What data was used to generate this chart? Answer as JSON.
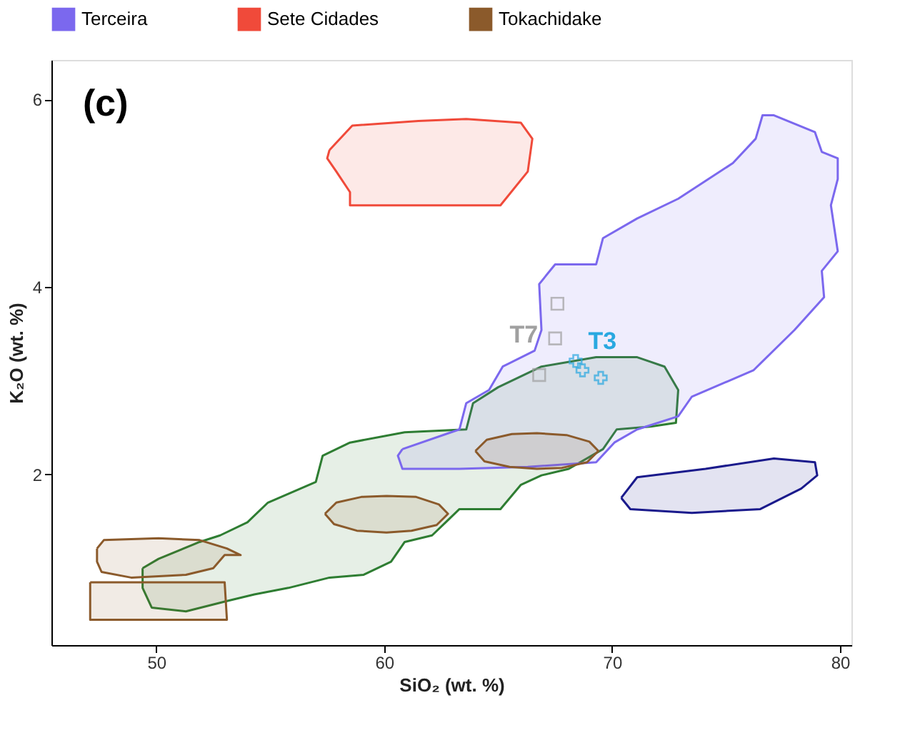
{
  "chart_data": {
    "type": "area",
    "xlabel": "SiO₂ (wt. %)",
    "ylabel": "K₂O (wt. %)",
    "xlim": [
      45.4,
      80.5
    ],
    "ylim": [
      0.18,
      6.42
    ],
    "xticks": [
      50,
      60,
      70,
      80
    ],
    "yticks": [
      2,
      4,
      6
    ],
    "grid": false,
    "legend": "top",
    "annotations": [
      "(c)",
      {
        "text": "T7",
        "x": 67.5,
        "y": 3.45
      },
      {
        "text": "T3",
        "x": 68.7,
        "y": 3.11
      }
    ],
    "series": [
      {
        "color": "#2e7d32",
        "x": [
          49.4,
          50.1,
          51.9,
          52.8,
          54.0,
          54.9,
          57.0,
          57.3,
          58.5,
          60.9,
          63.6,
          63.9,
          65.0,
          66.9,
          69.3,
          71.1,
          72.3,
          72.9,
          72.8,
          71.7,
          70.2,
          69.6,
          68.1,
          66.9,
          66.0,
          65.1,
          63.3,
          62.7,
          62.1,
          60.9,
          60.3,
          59.1,
          57.6,
          55.8,
          54.3,
          53.1,
          51.3,
          49.8,
          49.4
        ],
        "values": [
          1.0,
          1.1,
          1.28,
          1.35,
          1.49,
          1.7,
          1.92,
          2.2,
          2.34,
          2.45,
          2.48,
          2.76,
          2.93,
          3.15,
          3.25,
          3.25,
          3.15,
          2.9,
          2.55,
          2.51,
          2.48,
          2.27,
          2.06,
          1.99,
          1.89,
          1.63,
          1.63,
          1.49,
          1.35,
          1.28,
          1.07,
          0.93,
          0.9,
          0.79,
          0.72,
          0.65,
          0.54,
          0.58,
          0.79
        ]
      },
      {
        "name": "Terceira",
        "color": "#7b68ee",
        "x": [
          60.8,
          63.3,
          63.6,
          64.6,
          65.2,
          66.6,
          66.9,
          66.8,
          67.5,
          69.3,
          69.6,
          71.1,
          72.9,
          74.1,
          75.3,
          76.3,
          76.6,
          77.1,
          78.9,
          79.2,
          79.9,
          79.9,
          79.6,
          79.9,
          79.2,
          79.3,
          78.0,
          76.2,
          73.5,
          72.9,
          71.1,
          70.1,
          69.3,
          66.3,
          63.3,
          60.8,
          60.6
        ],
        "values": [
          2.27,
          2.48,
          2.76,
          2.9,
          3.15,
          3.32,
          3.54,
          4.03,
          4.24,
          4.24,
          4.52,
          4.73,
          4.94,
          5.13,
          5.32,
          5.58,
          5.83,
          5.83,
          5.65,
          5.44,
          5.37,
          5.15,
          4.87,
          4.38,
          4.17,
          3.89,
          3.54,
          3.11,
          2.83,
          2.62,
          2.48,
          2.34,
          2.13,
          2.08,
          2.06,
          2.06,
          2.2
        ]
      },
      {
        "name": "Sete Cidades",
        "color": "#f04a3a",
        "x": [
          57.6,
          58.6,
          61.5,
          63.6,
          66.0,
          66.5,
          66.3,
          65.1,
          58.5,
          58.5,
          57.9,
          57.5
        ],
        "values": [
          5.46,
          5.72,
          5.77,
          5.79,
          5.75,
          5.58,
          5.23,
          4.87,
          4.87,
          5.01,
          5.23,
          5.37
        ]
      },
      {
        "color": "#1a1a8c",
        "x": [
          70.4,
          71.1,
          74.1,
          77.1,
          78.9,
          79.0,
          78.3,
          76.5,
          73.5,
          70.8
        ],
        "values": [
          1.75,
          1.97,
          2.06,
          2.17,
          2.13,
          1.99,
          1.85,
          1.63,
          1.59,
          1.63
        ]
      },
      {
        "name": "Tokachidake",
        "color": "#8b5a2b",
        "x": [
          57.4,
          57.9,
          59.0,
          60.1,
          61.4,
          62.4,
          62.8,
          62.3,
          61.2,
          60.1,
          58.8,
          57.8
        ],
        "values": [
          1.58,
          1.7,
          1.76,
          1.77,
          1.76,
          1.68,
          1.58,
          1.46,
          1.4,
          1.38,
          1.4,
          1.47
        ]
      },
      {
        "color": "#8b5a2b",
        "x": [
          64.0,
          64.5,
          65.6,
          66.7,
          68.0,
          69.0,
          69.4,
          68.9,
          67.8,
          66.7,
          65.5,
          64.4
        ],
        "values": [
          2.25,
          2.37,
          2.43,
          2.44,
          2.42,
          2.35,
          2.25,
          2.13,
          2.07,
          2.06,
          2.08,
          2.14
        ]
      },
      {
        "color": "#8b5a2b",
        "x": [
          47.4,
          47.7,
          50.1,
          51.9,
          53.1,
          53.7,
          53.0,
          52.5,
          51.3,
          48.9,
          47.6,
          47.4
        ],
        "values": [
          1.21,
          1.3,
          1.32,
          1.3,
          1.21,
          1.14,
          1.14,
          1.0,
          0.93,
          0.9,
          0.96,
          1.07
        ]
      },
      {
        "color": "#8b5a2b",
        "x": [
          47.1,
          53.0,
          53.1,
          47.1
        ],
        "values": [
          0.85,
          0.85,
          0.45,
          0.45
        ]
      },
      {
        "type": "scatter",
        "marker": "square",
        "color": "#a0a0a0",
        "x": [
          67.6,
          67.5,
          66.8
        ],
        "values": [
          3.82,
          3.45,
          3.06
        ]
      },
      {
        "type": "scatter",
        "marker": "cross",
        "color": "#29a8e0",
        "x": [
          68.4,
          68.7,
          69.5
        ],
        "values": [
          3.21,
          3.11,
          3.03
        ]
      }
    ]
  }
}
